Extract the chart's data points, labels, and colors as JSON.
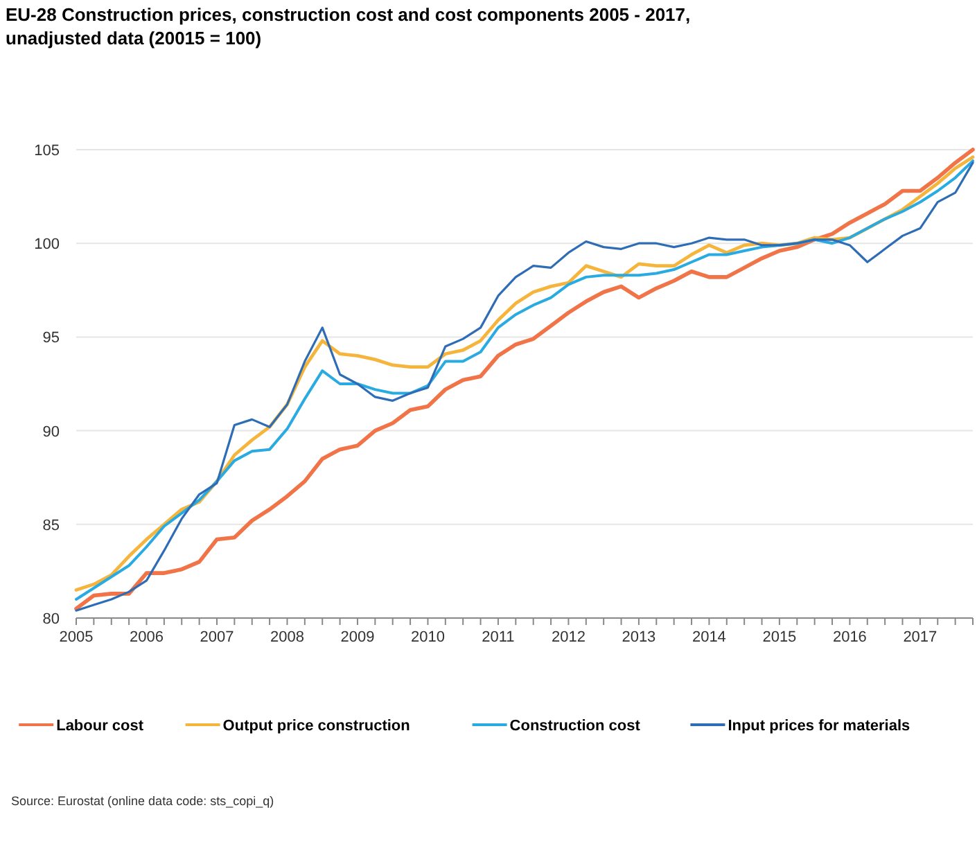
{
  "chart_data": {
    "type": "line",
    "title": "EU-28 Construction prices, construction cost and cost components 2005 - 2017, unadjusted data (20015 = 100)",
    "x": [
      2005,
      2005.25,
      2005.5,
      2005.75,
      2006,
      2006.25,
      2006.5,
      2006.75,
      2007,
      2007.25,
      2007.5,
      2007.75,
      2008,
      2008.25,
      2008.5,
      2008.75,
      2009,
      2009.25,
      2009.5,
      2009.75,
      2010,
      2010.25,
      2010.5,
      2010.75,
      2011,
      2011.25,
      2011.5,
      2011.75,
      2012,
      2012.25,
      2012.5,
      2012.75,
      2013,
      2013.25,
      2013.5,
      2013.75,
      2014,
      2014.25,
      2014.5,
      2014.75,
      2015,
      2015.25,
      2015.5,
      2015.75,
      2016,
      2016.25,
      2016.5,
      2016.75,
      2017,
      2017.25,
      2017.5,
      2017.75
    ],
    "series": [
      {
        "name": "Labour cost",
        "color": "#f07448",
        "values": [
          80.5,
          81.2,
          81.3,
          81.3,
          82.4,
          82.4,
          82.6,
          83.0,
          84.2,
          84.3,
          85.2,
          85.8,
          86.5,
          87.3,
          88.5,
          89.0,
          89.2,
          90.0,
          90.4,
          91.1,
          91.3,
          92.2,
          92.7,
          92.9,
          94.0,
          94.6,
          94.9,
          95.6,
          96.3,
          96.9,
          97.4,
          97.7,
          97.1,
          97.6,
          98.0,
          98.5,
          98.2,
          98.2,
          98.7,
          99.2,
          99.6,
          99.8,
          100.2,
          100.5,
          101.1,
          101.6,
          102.1,
          102.8,
          102.8,
          103.5,
          104.3,
          105.0
        ]
      },
      {
        "name": "Output price construction",
        "color": "#f5b43c",
        "values": [
          81.5,
          81.8,
          82.3,
          83.3,
          84.2,
          85.0,
          85.8,
          86.2,
          87.3,
          88.7,
          89.5,
          90.2,
          91.4,
          93.4,
          94.8,
          94.1,
          94.0,
          93.8,
          93.5,
          93.4,
          93.4,
          94.1,
          94.3,
          94.8,
          95.9,
          96.8,
          97.4,
          97.7,
          97.9,
          98.8,
          98.5,
          98.2,
          98.9,
          98.8,
          98.8,
          99.4,
          99.9,
          99.5,
          99.9,
          100.0,
          99.9,
          100.0,
          100.3,
          100.2,
          100.3,
          100.8,
          101.3,
          101.8,
          102.5,
          103.2,
          104.0,
          104.6
        ]
      },
      {
        "name": "Construction cost",
        "color": "#29abe2",
        "values": [
          81.0,
          81.6,
          82.2,
          82.8,
          83.8,
          84.9,
          85.6,
          86.3,
          87.3,
          88.4,
          88.9,
          89.0,
          90.1,
          91.7,
          93.2,
          92.5,
          92.5,
          92.2,
          92.0,
          92.0,
          92.4,
          93.7,
          93.7,
          94.2,
          95.5,
          96.2,
          96.7,
          97.1,
          97.8,
          98.2,
          98.3,
          98.3,
          98.3,
          98.4,
          98.6,
          99.0,
          99.4,
          99.4,
          99.6,
          99.8,
          99.9,
          100.0,
          100.2,
          100.0,
          100.3,
          100.8,
          101.3,
          101.7,
          102.2,
          102.8,
          103.5,
          104.4
        ]
      },
      {
        "name": "Input prices for materials",
        "color": "#2e6db5",
        "values": [
          80.4,
          80.7,
          81.0,
          81.4,
          82.0,
          83.6,
          85.3,
          86.6,
          87.2,
          90.3,
          90.6,
          90.2,
          91.4,
          93.7,
          95.5,
          93.0,
          92.5,
          91.8,
          91.6,
          92.0,
          92.3,
          94.5,
          94.9,
          95.5,
          97.2,
          98.2,
          98.8,
          98.7,
          99.5,
          100.1,
          99.8,
          99.7,
          100.0,
          100.0,
          99.8,
          100.0,
          100.3,
          100.2,
          100.2,
          99.9,
          99.9,
          100.0,
          100.2,
          100.2,
          99.9,
          99.0,
          99.7,
          100.4,
          100.8,
          102.2,
          102.7,
          104.3
        ]
      }
    ],
    "xlim": [
      2005,
      2017.75
    ],
    "xticks": [
      2005,
      {
        "value": 2005.25,
        "label": null
      },
      {
        "value": 2005.5,
        "label": null
      },
      {
        "value": 2005.75,
        "label": null
      },
      2006,
      {
        "value": 2006.25,
        "label": null
      },
      {
        "value": 2006.5,
        "label": null
      },
      {
        "value": 2006.75,
        "label": null
      },
      2007,
      {
        "value": 2007.25,
        "label": null
      },
      {
        "value": 2007.5,
        "label": null
      },
      {
        "value": 2007.75,
        "label": null
      },
      2008,
      {
        "value": 2008.25,
        "label": null
      },
      {
        "value": 2008.5,
        "label": null
      },
      {
        "value": 2008.75,
        "label": null
      },
      2009,
      {
        "value": 2009.25,
        "label": null
      },
      {
        "value": 2009.5,
        "label": null
      },
      {
        "value": 2009.75,
        "label": null
      },
      2010,
      {
        "value": 2010.25,
        "label": null
      },
      {
        "value": 2010.5,
        "label": null
      },
      {
        "value": 2010.75,
        "label": null
      },
      2011,
      {
        "value": 2011.25,
        "label": null
      },
      {
        "value": 2011.5,
        "label": null
      },
      {
        "value": 2011.75,
        "label": null
      },
      2012,
      {
        "value": 2012.25,
        "label": null
      },
      {
        "value": 2012.5,
        "label": null
      },
      {
        "value": 2012.75,
        "label": null
      },
      2013,
      {
        "value": 2013.25,
        "label": null
      },
      {
        "value": 2013.5,
        "label": null
      },
      {
        "value": 2013.75,
        "label": null
      },
      2014,
      {
        "value": 2014.25,
        "label": null
      },
      {
        "value": 2014.5,
        "label": null
      },
      {
        "value": 2014.75,
        "label": null
      },
      2015,
      {
        "value": 2015.25,
        "label": null
      },
      {
        "value": 2015.5,
        "label": null
      },
      {
        "value": 2015.75,
        "label": null
      },
      2016,
      {
        "value": 2016.25,
        "label": null
      },
      {
        "value": 2016.5,
        "label": null
      },
      {
        "value": 2016.75,
        "label": null
      },
      2017,
      {
        "value": 2017.25,
        "label": null
      },
      {
        "value": 2017.5,
        "label": null
      },
      {
        "value": 2017.75,
        "label": null
      }
    ],
    "ylim": [
      80,
      105
    ],
    "yticks": [
      80,
      85,
      90,
      95,
      100,
      105
    ],
    "grid": "y",
    "legend": "bottom",
    "line_style": "solid",
    "annotations": [
      "Source: Eurostat (online data code: sts_copi_q)"
    ]
  }
}
